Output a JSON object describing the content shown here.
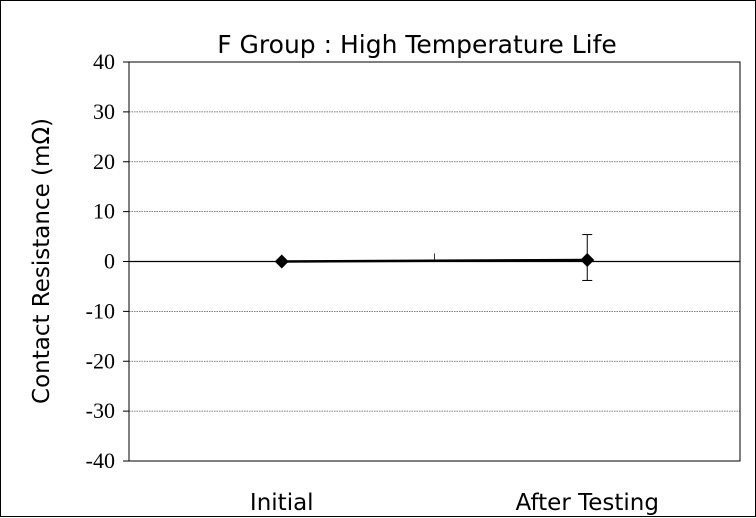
{
  "chart_data": {
    "type": "line",
    "title": "F Group : High Temperature Life",
    "xlabel": "",
    "ylabel": "Contact Resistance (mΩ)",
    "categories": [
      "Initial",
      "After Testing"
    ],
    "series": [
      {
        "values": [
          0,
          0.3
        ],
        "error_low": [
          null,
          -3.8
        ],
        "error_high": [
          null,
          5.4
        ],
        "marker": "diamond",
        "color": "#000000"
      }
    ],
    "ylim": [
      -40,
      40
    ],
    "yticks": [
      40,
      30,
      20,
      10,
      0,
      -10,
      -20,
      -30,
      -40
    ],
    "yticklabels": [
      "40",
      "30",
      "20",
      "10",
      "0",
      "-10",
      "-20",
      "-30",
      "-40"
    ],
    "grid": true,
    "legend": "none"
  }
}
